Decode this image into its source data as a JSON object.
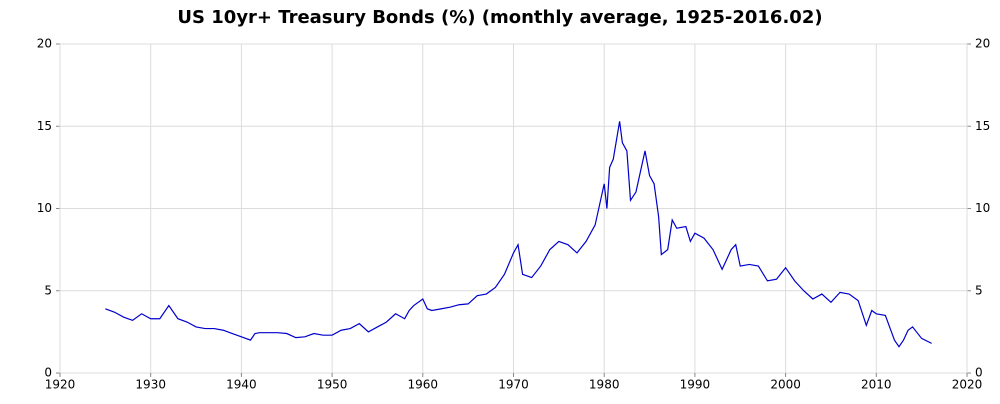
{
  "chart_data": {
    "type": "line",
    "title": "US 10yr+ Treasury Bonds (%) (monthly average, 1925-2016.02)",
    "x": [
      1925,
      1926,
      1927,
      1928,
      1929,
      1930,
      1931,
      1932,
      1932.5,
      1933,
      1934,
      1935,
      1936,
      1937,
      1938,
      1939,
      1940,
      1941,
      1941.5,
      1942,
      1943,
      1944,
      1945,
      1946,
      1947,
      1948,
      1949,
      1950,
      1951,
      1952,
      1953,
      1954,
      1955,
      1956,
      1957,
      1958,
      1958.5,
      1959,
      1960,
      1960.5,
      1961,
      1962,
      1963,
      1964,
      1965,
      1966,
      1967,
      1968,
      1969,
      1970,
      1970.5,
      1971,
      1972,
      1973,
      1974,
      1975,
      1976,
      1977,
      1978,
      1979,
      1980,
      1980.3,
      1980.6,
      1981,
      1981.7,
      1982,
      1982.5,
      1982.9,
      1983.5,
      1984.5,
      1985,
      1985.5,
      1986,
      1986.3,
      1987,
      1987.5,
      1988,
      1989,
      1989.5,
      1990,
      1991,
      1992,
      1993,
      1994,
      1994.5,
      1995,
      1996,
      1997,
      1998,
      1999,
      2000,
      2001,
      2002,
      2003,
      2004,
      2005,
      2006,
      2007,
      2008,
      2008.9,
      2009.5,
      2010,
      2011,
      2012,
      2012.5,
      2013,
      2013.5,
      2014,
      2015,
      2016.1
    ],
    "series": [
      {
        "color": "#0000cc",
        "values": [
          3.9,
          3.7,
          3.4,
          3.2,
          3.6,
          3.3,
          3.3,
          4.1,
          3.7,
          3.3,
          3.1,
          2.8,
          2.7,
          2.7,
          2.6,
          2.4,
          2.2,
          2.0,
          2.4,
          2.45,
          2.45,
          2.45,
          2.4,
          2.15,
          2.2,
          2.4,
          2.3,
          2.3,
          2.6,
          2.7,
          3.0,
          2.5,
          2.8,
          3.1,
          3.6,
          3.3,
          3.8,
          4.1,
          4.5,
          3.9,
          3.8,
          3.9,
          4.0,
          4.15,
          4.2,
          4.7,
          4.8,
          5.2,
          6.0,
          7.3,
          7.8,
          6.0,
          5.8,
          6.5,
          7.5,
          8.0,
          7.8,
          7.3,
          8.0,
          9.0,
          11.5,
          10.0,
          12.5,
          13.0,
          15.3,
          14.0,
          13.5,
          10.5,
          11.0,
          13.5,
          12.0,
          11.5,
          9.5,
          7.2,
          7.5,
          9.3,
          8.8,
          8.9,
          8.0,
          8.5,
          8.2,
          7.5,
          6.3,
          7.5,
          7.8,
          6.5,
          6.6,
          6.5,
          5.6,
          5.7,
          6.4,
          5.6,
          5.0,
          4.5,
          4.8,
          4.3,
          4.9,
          4.8,
          4.4,
          2.9,
          3.8,
          3.6,
          3.5,
          2.0,
          1.6,
          2.0,
          2.6,
          2.8,
          2.1,
          1.8
        ]
      }
    ],
    "xlim": [
      1920,
      2020
    ],
    "xticks": [
      1920,
      1930,
      1940,
      1950,
      1960,
      1970,
      1980,
      1990,
      2000,
      2010,
      2020
    ],
    "ylim": [
      0,
      20
    ],
    "yticks": [
      0,
      5,
      10,
      15,
      20
    ],
    "grid": true
  }
}
